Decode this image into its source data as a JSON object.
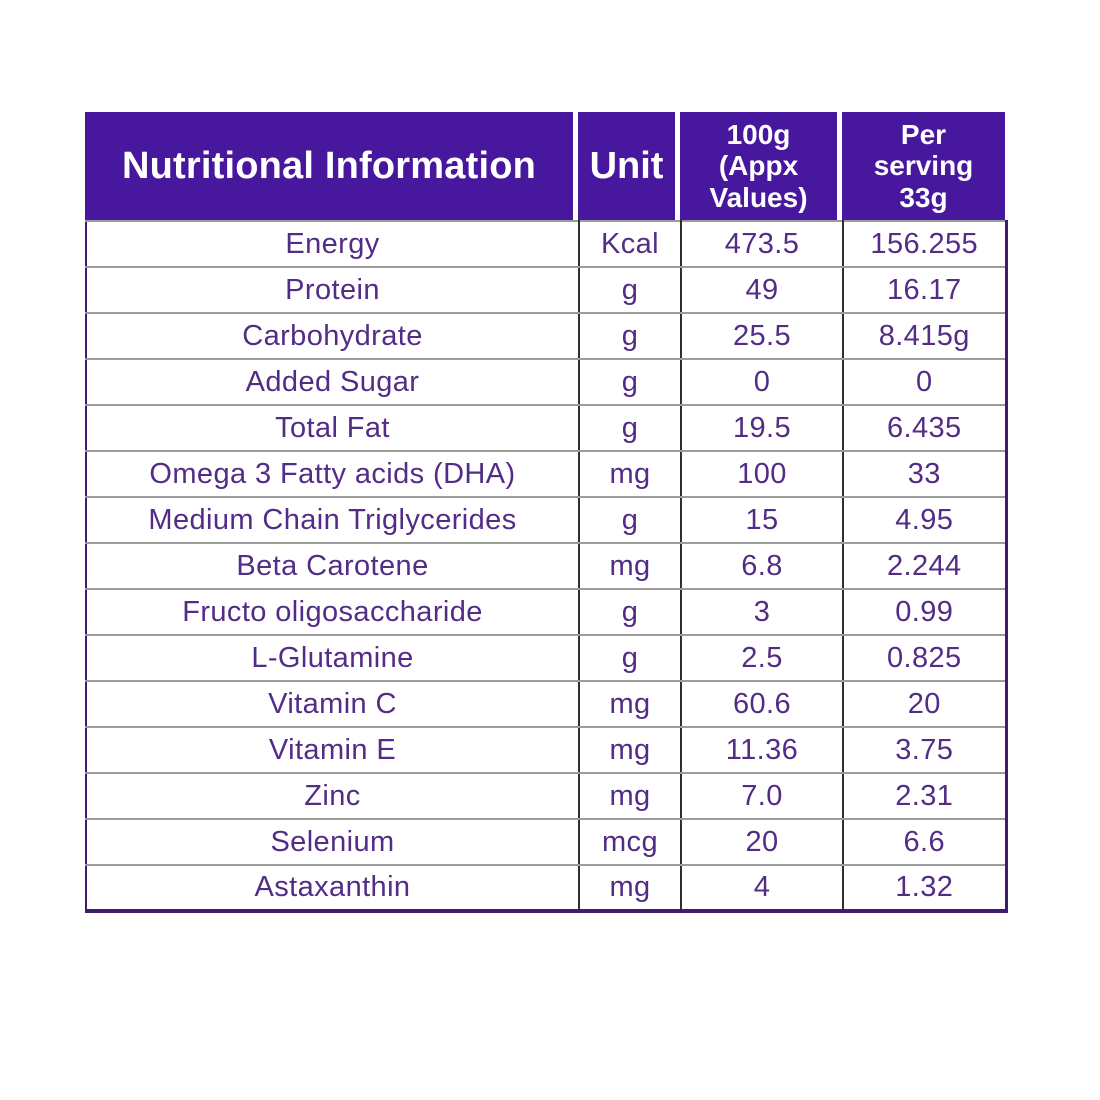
{
  "colors": {
    "header_bg": "#47189e",
    "header_text": "#ffffff",
    "body_text": "#532c87",
    "outer_border": "#3e1d6e",
    "h_line": "#9c9c9c",
    "v_line": "#2e2e2e",
    "page_bg": "#ffffff"
  },
  "table": {
    "headers": [
      {
        "label": "Nutritional Information"
      },
      {
        "label": "Unit"
      },
      {
        "label": "100g\n(Appx\nValues)"
      },
      {
        "label": "Per\nserving\n33g"
      }
    ],
    "rows": [
      {
        "nutrient": "Energy",
        "unit": "Kcal",
        "per_100g": "473.5",
        "per_serving": "156.255"
      },
      {
        "nutrient": "Protein",
        "unit": "g",
        "per_100g": "49",
        "per_serving": "16.17"
      },
      {
        "nutrient": "Carbohydrate",
        "unit": "g",
        "per_100g": "25.5",
        "per_serving": "8.415g"
      },
      {
        "nutrient": "Added Sugar",
        "unit": "g",
        "per_100g": "0",
        "per_serving": "0"
      },
      {
        "nutrient": "Total Fat",
        "unit": "g",
        "per_100g": "19.5",
        "per_serving": "6.435"
      },
      {
        "nutrient": "Omega 3 Fatty acids (DHA)",
        "unit": "mg",
        "per_100g": "100",
        "per_serving": "33"
      },
      {
        "nutrient": "Medium Chain Triglycerides",
        "unit": "g",
        "per_100g": "15",
        "per_serving": "4.95"
      },
      {
        "nutrient": "Beta Carotene",
        "unit": "mg",
        "per_100g": "6.8",
        "per_serving": "2.244"
      },
      {
        "nutrient": "Fructo oligosaccharide",
        "unit": "g",
        "per_100g": "3",
        "per_serving": "0.99"
      },
      {
        "nutrient": "L-Glutamine",
        "unit": "g",
        "per_100g": "2.5",
        "per_serving": "0.825"
      },
      {
        "nutrient": "Vitamin C",
        "unit": "mg",
        "per_100g": "60.6",
        "per_serving": "20"
      },
      {
        "nutrient": "Vitamin E",
        "unit": "mg",
        "per_100g": "11.36",
        "per_serving": "3.75"
      },
      {
        "nutrient": "Zinc",
        "unit": "mg",
        "per_100g": "7.0",
        "per_serving": "2.31"
      },
      {
        "nutrient": "Selenium",
        "unit": "mcg",
        "per_100g": "20",
        "per_serving": "6.6"
      },
      {
        "nutrient": "Astaxanthin",
        "unit": "mg",
        "per_100g": "4",
        "per_serving": "1.32"
      }
    ]
  }
}
